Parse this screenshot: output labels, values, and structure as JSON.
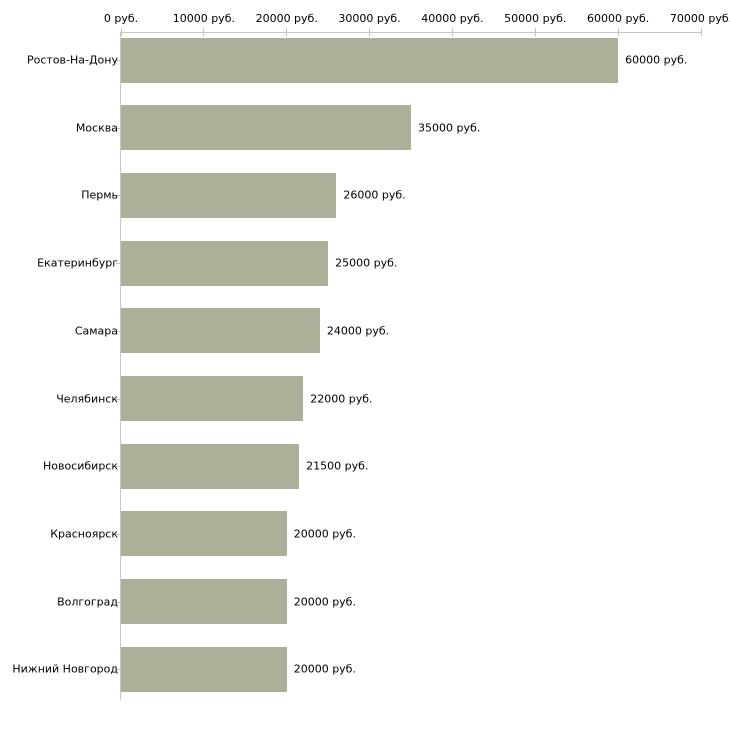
{
  "chart_data": {
    "type": "bar",
    "orientation": "horizontal",
    "title": "",
    "xlabel": "",
    "ylabel": "",
    "xlim": [
      0,
      70000
    ],
    "grid": false,
    "legend_position": "none",
    "x_ticks": [
      0,
      10000,
      20000,
      30000,
      40000,
      50000,
      60000,
      70000
    ],
    "x_tick_labels": [
      "0 руб.",
      "10000 руб.",
      "20000 руб.",
      "30000 руб.",
      "40000 руб.",
      "50000 руб.",
      "60000 руб.",
      "70000 руб."
    ],
    "categories": [
      "Ростов-На-Дону",
      "Москва",
      "Пермь",
      "Екатеринбург",
      "Самара",
      "Челябинск",
      "Новосибирск",
      "Красноярск",
      "Волгоград",
      "Нижний Новгород"
    ],
    "values": [
      60000,
      35000,
      26000,
      25000,
      24000,
      22000,
      21500,
      20000,
      20000,
      20000
    ],
    "value_labels": [
      "60000 руб.",
      "35000 руб.",
      "26000 руб.",
      "25000 руб.",
      "24000 руб.",
      "22000 руб.",
      "21500 руб.",
      "20000 руб.",
      "20000 руб.",
      "20000 руб."
    ],
    "colors": {
      "bar": "#abb198",
      "axis_line": "#c6c6c6",
      "tick": "#c2c6a5",
      "text": "#000000",
      "background": "#ffffff"
    }
  }
}
